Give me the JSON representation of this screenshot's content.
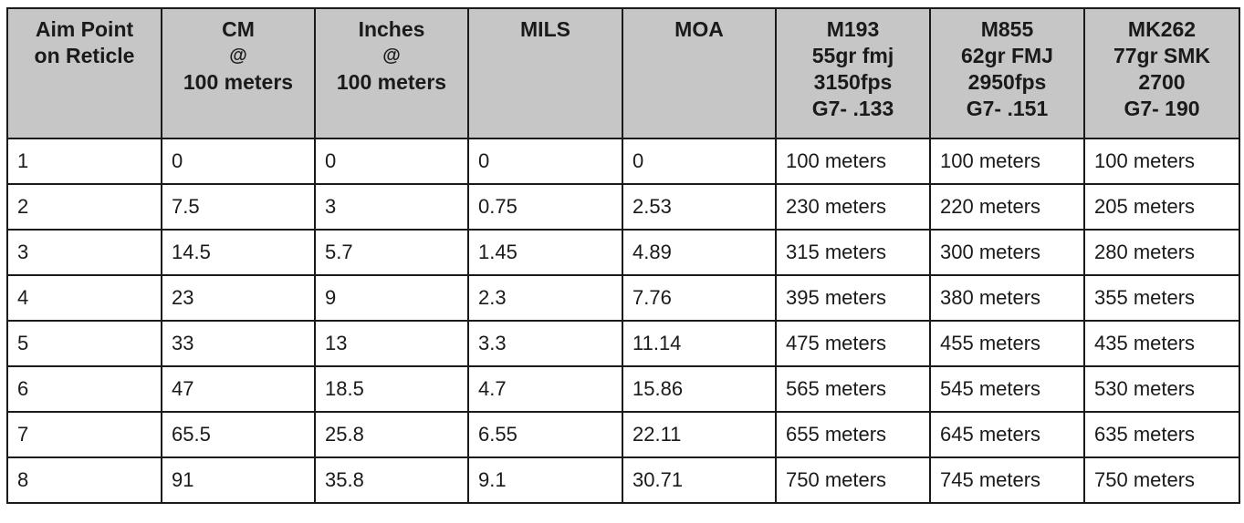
{
  "table": {
    "headers": [
      {
        "lines": [
          "Aim Point",
          "on Reticle"
        ]
      },
      {
        "lines": [
          "CM",
          "@",
          "100 meters"
        ]
      },
      {
        "lines": [
          "Inches",
          "@",
          "100 meters"
        ]
      },
      {
        "lines": [
          "MILS"
        ]
      },
      {
        "lines": [
          "MOA"
        ]
      },
      {
        "lines": [
          "M193",
          "55gr fmj",
          "3150fps",
          "G7- .133"
        ]
      },
      {
        "lines": [
          "M855",
          "62gr FMJ",
          "2950fps",
          "G7- .151"
        ]
      },
      {
        "lines": [
          "MK262",
          "77gr SMK",
          "2700",
          "G7- 190"
        ]
      }
    ],
    "rows": [
      [
        "1",
        "0",
        "0",
        "0",
        "0",
        "100 meters",
        "100 meters",
        "100 meters"
      ],
      [
        "2",
        "7.5",
        "3",
        "0.75",
        "2.53",
        "230 meters",
        "220 meters",
        "205 meters"
      ],
      [
        "3",
        "14.5",
        "5.7",
        "1.45",
        "4.89",
        "315 meters",
        "300 meters",
        "280 meters"
      ],
      [
        "4",
        "23",
        "9",
        "2.3",
        "7.76",
        "395 meters",
        "380 meters",
        "355 meters"
      ],
      [
        "5",
        "33",
        "13",
        "3.3",
        "11.14",
        "475 meters",
        "455 meters",
        "435 meters"
      ],
      [
        "6",
        "47",
        "18.5",
        "4.7",
        "15.86",
        "565 meters",
        "545 meters",
        "530 meters"
      ],
      [
        "7",
        "65.5",
        "25.8",
        "6.55",
        "22.11",
        "655 meters",
        "645 meters",
        "635 meters"
      ],
      [
        "8",
        "91",
        "35.8",
        "9.1",
        "30.71",
        "750 meters",
        "745 meters",
        "750 meters"
      ]
    ]
  },
  "colors": {
    "header_background": "#c6c6c6",
    "border": "#1a1a1a",
    "cell_background": "#ffffff"
  }
}
